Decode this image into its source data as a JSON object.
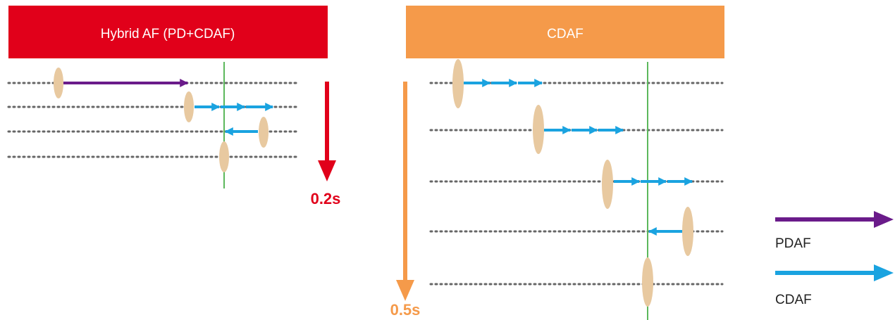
{
  "colors": {
    "hybrid_header": "#e1001a",
    "cdaf_header": "#f59a4a",
    "lens": "#e8c9a0",
    "dots": "#666666",
    "focus_line": "#5cb85c",
    "pdaf_arrow": "#6a1b8a",
    "cdaf_arrow": "#1aa3e0",
    "hybrid_time": "#e1001a",
    "cdaf_time": "#f59a4a"
  },
  "panels": {
    "hybrid": {
      "title": "Hybrid AF (PD+CDAF)",
      "time": "0.2s"
    },
    "cdaf": {
      "title": "CDAF",
      "time": "0.5s"
    }
  },
  "legend": {
    "pdaf_label": "PDAF",
    "cdaf_label": "CDAF"
  }
}
